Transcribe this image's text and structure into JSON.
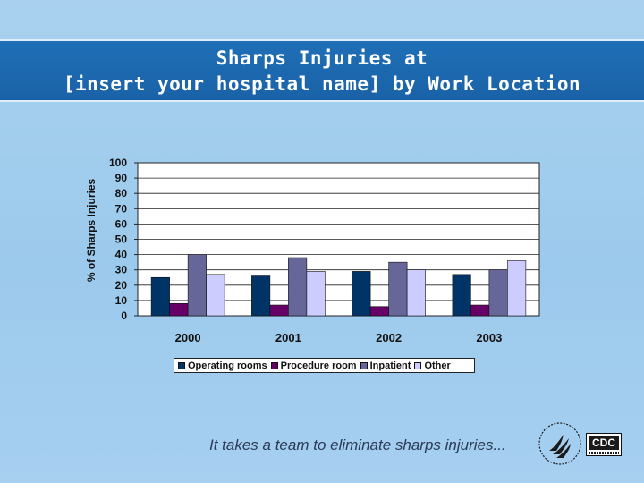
{
  "header": {
    "title_line_1": "Sharps Injuries at",
    "title_line_2": "[insert your hospital name] by Work Location"
  },
  "chart_data": {
    "type": "bar",
    "categories": [
      "2000",
      "2001",
      "2002",
      "2003"
    ],
    "series": [
      {
        "name": "Operating rooms",
        "color": "#003366",
        "values": [
          25,
          26,
          29,
          27
        ]
      },
      {
        "name": "Procedure room",
        "color": "#660066",
        "values": [
          8,
          7,
          6,
          7
        ]
      },
      {
        "name": "Inpatient",
        "color": "#666699",
        "values": [
          40,
          38,
          35,
          30
        ]
      },
      {
        "name": "Other",
        "color": "#ccccff",
        "values": [
          27,
          29,
          30,
          36
        ]
      }
    ],
    "ylabel": "% of Sharps Injuries",
    "ylim": [
      0,
      100
    ],
    "yticks": [
      0,
      10,
      20,
      30,
      40,
      50,
      60,
      70,
      80,
      90,
      100
    ],
    "grid": true,
    "legend_position": "bottom"
  },
  "footer": {
    "tagline": "It takes a team to eliminate sharps injuries...",
    "cdc_logo_text": "CDC",
    "hhs_logo_icon": "hhs-eagle-icon"
  }
}
